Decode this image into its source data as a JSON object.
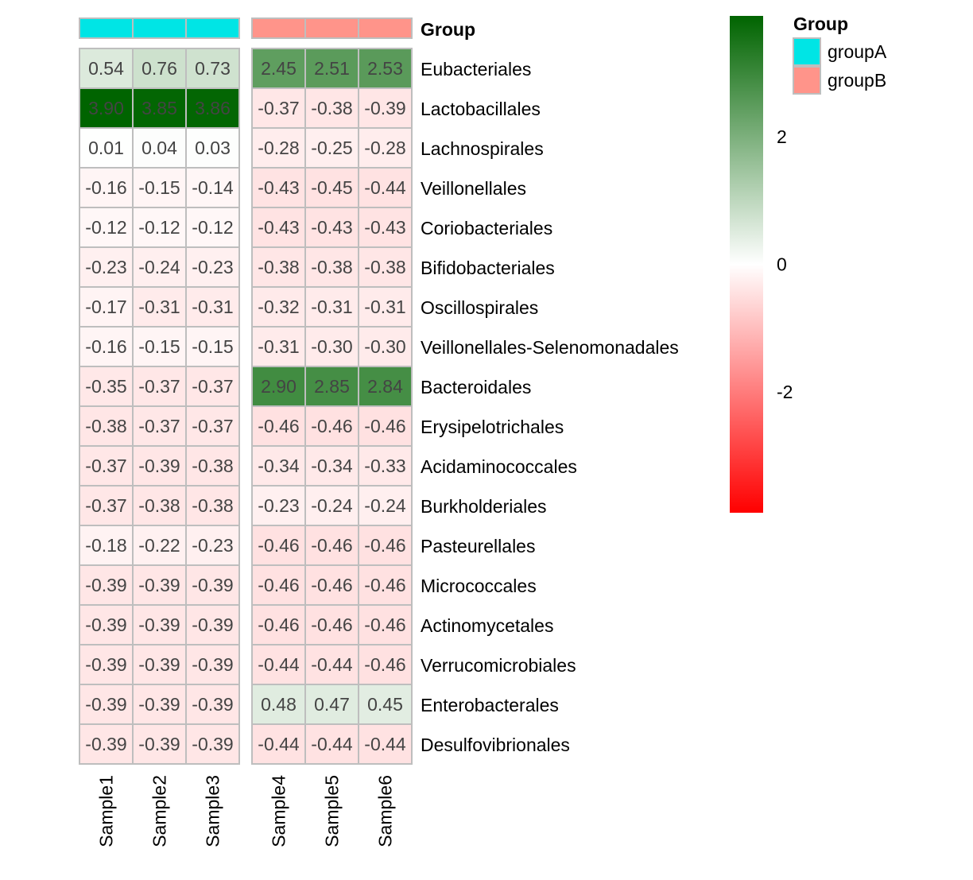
{
  "chart_data": {
    "type": "heatmap",
    "samples": [
      "Sample1",
      "Sample2",
      "Sample3",
      "Sample4",
      "Sample5",
      "Sample6"
    ],
    "rows": [
      "Eubacteriales",
      "Lactobacillales",
      "Lachnospirales",
      "Veillonellales",
      "Coriobacteriales",
      "Bifidobacteriales",
      "Oscillospirales",
      "Veillonellales-Selenomonadales",
      "Bacteroidales",
      "Erysipelotrichales",
      "Acidaminococcales",
      "Burkholderiales",
      "Pasteurellales",
      "Micrococcales",
      "Actinomycetales",
      "Verrucomicrobiales",
      "Enterobacterales",
      "Desulfovibrionales"
    ],
    "values": [
      [
        "0.54",
        "0.76",
        "0.73",
        "2.45",
        "2.51",
        "2.53"
      ],
      [
        "3.90",
        "3.85",
        "3.86",
        "-0.37",
        "-0.38",
        "-0.39"
      ],
      [
        "0.01",
        "0.04",
        "0.03",
        "-0.28",
        "-0.25",
        "-0.28"
      ],
      [
        "-0.16",
        "-0.15",
        "-0.14",
        "-0.43",
        "-0.45",
        "-0.44"
      ],
      [
        "-0.12",
        "-0.12",
        "-0.12",
        "-0.43",
        "-0.43",
        "-0.43"
      ],
      [
        "-0.23",
        "-0.24",
        "-0.23",
        "-0.38",
        "-0.38",
        "-0.38"
      ],
      [
        "-0.17",
        "-0.31",
        "-0.31",
        "-0.32",
        "-0.31",
        "-0.31"
      ],
      [
        "-0.16",
        "-0.15",
        "-0.15",
        "-0.31",
        "-0.30",
        "-0.30"
      ],
      [
        "-0.35",
        "-0.37",
        "-0.37",
        "2.90",
        "2.85",
        "2.84"
      ],
      [
        "-0.38",
        "-0.37",
        "-0.37",
        "-0.46",
        "-0.46",
        "-0.46"
      ],
      [
        "-0.37",
        "-0.39",
        "-0.38",
        "-0.34",
        "-0.34",
        "-0.33"
      ],
      [
        "-0.37",
        "-0.38",
        "-0.38",
        "-0.23",
        "-0.24",
        "-0.24"
      ],
      [
        "-0.18",
        "-0.22",
        "-0.23",
        "-0.46",
        "-0.46",
        "-0.46"
      ],
      [
        "-0.39",
        "-0.39",
        "-0.39",
        "-0.46",
        "-0.46",
        "-0.46"
      ],
      [
        "-0.39",
        "-0.39",
        "-0.39",
        "-0.46",
        "-0.46",
        "-0.46"
      ],
      [
        "-0.39",
        "-0.39",
        "-0.39",
        "-0.44",
        "-0.44",
        "-0.46"
      ],
      [
        "-0.39",
        "-0.39",
        "-0.39",
        "0.48",
        "0.47",
        "0.45"
      ],
      [
        "-0.39",
        "-0.39",
        "-0.39",
        "-0.44",
        "-0.44",
        "-0.44"
      ]
    ],
    "annotation": {
      "title": "Group",
      "sample_groups": [
        "groupA",
        "groupA",
        "groupA",
        "groupB",
        "groupB",
        "groupB"
      ],
      "levels": [
        {
          "name": "groupA",
          "color": "#00E5E5"
        },
        {
          "name": "groupB",
          "color": "#FF948A"
        }
      ]
    },
    "color_scale": {
      "low_color": "#FF0000",
      "mid_color": "#FFFFFF",
      "high_color": "#006400",
      "range": [
        -3.9,
        3.9
      ],
      "ticks": [
        "2",
        "0",
        "-2"
      ],
      "tick_values": [
        2,
        0,
        -2
      ]
    },
    "cell_border_color": "#BEBEBE",
    "value_text_color": "#444444"
  }
}
